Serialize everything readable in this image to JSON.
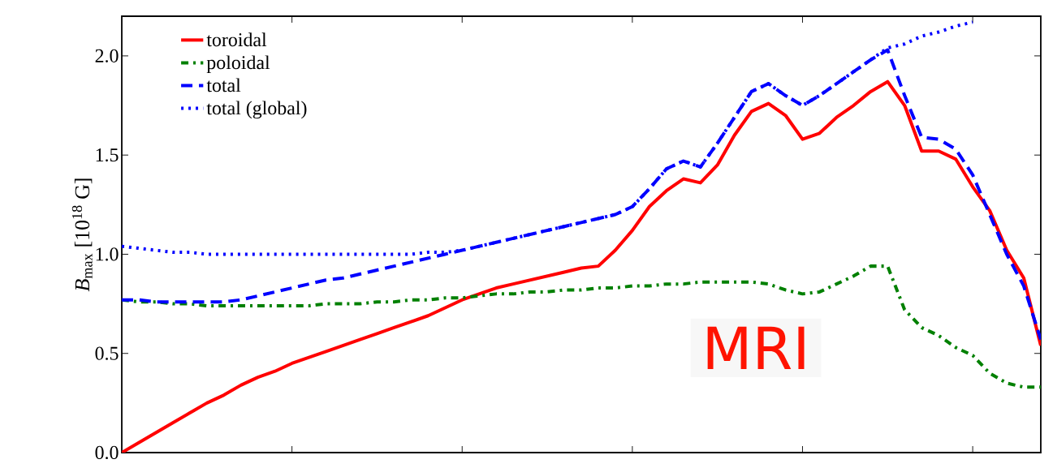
{
  "chart_data": {
    "type": "line",
    "ylabel": "*B*$_{max}$ [10$^{18}$ G]",
    "categories": [
      null,
      null,
      null,
      null,
      null,
      null,
      null,
      null,
      null,
      null,
      null,
      null,
      null,
      null,
      null,
      null,
      null,
      null,
      null,
      null,
      null,
      null,
      null,
      null,
      null,
      null,
      null,
      null,
      null,
      null,
      null,
      null,
      null,
      null,
      null,
      null,
      null,
      null,
      null,
      null,
      null,
      null,
      null,
      null,
      null,
      null,
      null,
      null,
      null,
      null,
      null,
      null,
      null,
      null,
      null
    ],
    "series": [
      {
        "name": "toroidal",
        "color": "#ff0000",
        "line_style": "solid",
        "values": [
          0,
          0.05,
          0.1,
          0.15,
          0.2,
          0.25,
          0.29,
          0.34,
          0.38,
          0.41,
          0.45,
          0.48,
          0.51,
          0.54,
          0.57,
          0.6,
          0.63,
          0.66,
          0.69,
          0.73,
          0.77,
          0.8,
          0.83,
          0.85,
          0.87,
          0.89,
          0.91,
          0.93,
          0.94,
          1.02,
          1.12,
          1.24,
          1.32,
          1.38,
          1.36,
          1.45,
          1.6,
          1.72,
          1.76,
          1.7,
          1.58,
          1.61,
          1.69,
          1.75,
          1.82,
          1.87,
          1.75,
          1.52,
          1.52,
          1.48,
          1.34,
          1.22,
          1.02,
          0.88,
          0.54
        ]
      },
      {
        "name": "poloidal",
        "color": "#008000",
        "line_style": "dashdot",
        "values": [
          0.77,
          0.76,
          0.76,
          0.75,
          0.75,
          0.74,
          0.74,
          0.74,
          0.74,
          0.74,
          0.74,
          0.74,
          0.75,
          0.75,
          0.75,
          0.76,
          0.76,
          0.77,
          0.77,
          0.78,
          0.78,
          0.79,
          0.8,
          0.8,
          0.81,
          0.81,
          0.82,
          0.82,
          0.83,
          0.83,
          0.84,
          0.84,
          0.85,
          0.85,
          0.86,
          0.86,
          0.86,
          0.86,
          0.85,
          0.82,
          0.8,
          0.81,
          0.85,
          0.89,
          0.94,
          0.94,
          0.72,
          0.63,
          0.59,
          0.53,
          0.49,
          0.4,
          0.35,
          0.33,
          0.33
        ]
      },
      {
        "name": "total",
        "color": "#0000ff",
        "line_style": "dashed",
        "values": [
          0.77,
          0.77,
          0.76,
          0.76,
          0.76,
          0.76,
          0.76,
          0.77,
          0.79,
          0.81,
          0.83,
          0.85,
          0.87,
          0.88,
          0.9,
          0.92,
          0.94,
          0.96,
          0.98,
          1.0,
          1.02,
          1.04,
          1.06,
          1.08,
          1.1,
          1.12,
          1.14,
          1.16,
          1.18,
          1.2,
          1.24,
          1.33,
          1.43,
          1.47,
          1.44,
          1.56,
          1.69,
          1.82,
          1.86,
          1.8,
          1.75,
          1.8,
          1.86,
          1.92,
          1.98,
          2.03,
          1.8,
          1.59,
          1.58,
          1.53,
          1.4,
          1.2,
          1.0,
          0.84,
          0.57
        ]
      },
      {
        "name": "total (global)",
        "color": "#0000ff",
        "line_style": "dotted",
        "values": [
          1.04,
          1.03,
          1.02,
          1.01,
          1.01,
          1.0,
          1.0,
          1.0,
          1.0,
          1.0,
          1.0,
          1.0,
          1.0,
          1.0,
          1.0,
          1.0,
          1.0,
          1.0,
          1.01,
          1.01,
          1.02,
          1.04,
          1.06,
          1.08,
          1.1,
          1.12,
          1.14,
          1.16,
          1.18,
          1.2,
          1.24,
          1.33,
          1.43,
          1.47,
          1.44,
          1.56,
          1.69,
          1.82,
          1.86,
          1.8,
          1.75,
          1.8,
          1.86,
          1.92,
          1.98,
          2.04,
          2.06,
          2.1,
          2.12,
          2.15,
          2.17,
          null,
          null,
          null,
          null
        ]
      }
    ],
    "ylim": [
      0,
      2.2
    ],
    "yticks": [
      {
        "value": 0,
        "label": "0.0"
      },
      {
        "value": 0.5,
        "label": "0.5"
      },
      {
        "value": 1,
        "label": "1.0"
      },
      {
        "value": 1.5,
        "label": "1.5"
      },
      {
        "value": 2,
        "label": "2.0"
      }
    ],
    "tick_labels": "y",
    "legend": "top left",
    "annotations": [
      "MRI"
    ]
  }
}
